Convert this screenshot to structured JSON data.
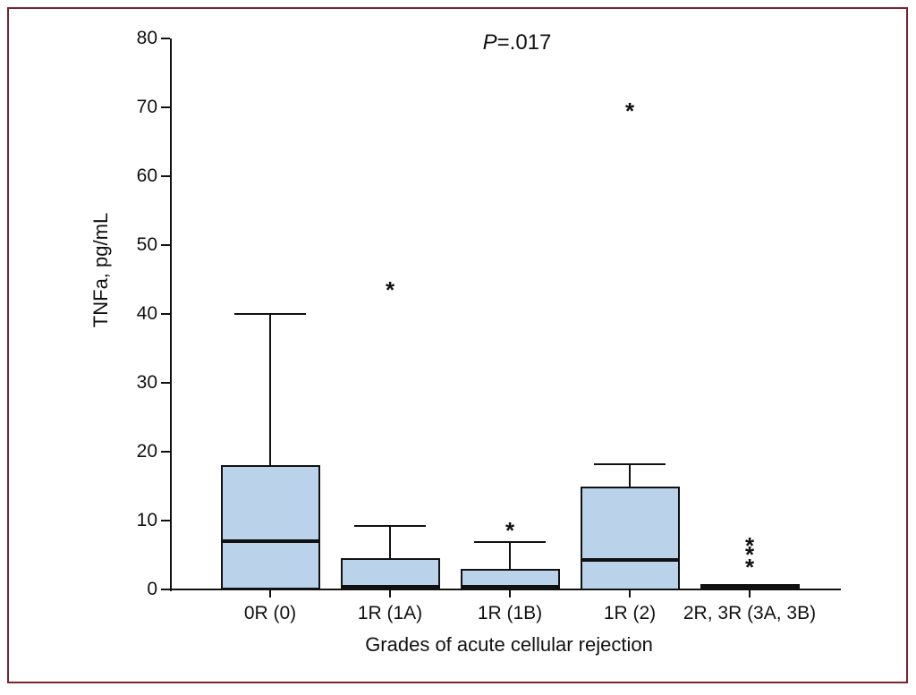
{
  "figure": {
    "frame_border_color": "#7d2332",
    "background": "#ffffff"
  },
  "chart_data": {
    "type": "boxplot",
    "title": "",
    "annotation": {
      "text": "P=.017",
      "italic": "P",
      "rest": "=.017"
    },
    "xlabel": "Grades of acute cellular rejection",
    "ylabel": "TNFa, pg/mL",
    "ylim": [
      0,
      80
    ],
    "yticks": [
      0,
      10,
      20,
      30,
      40,
      50,
      60,
      70,
      80
    ],
    "grid": false,
    "legend": false,
    "categories": [
      "0R (0)",
      "1R (1A)",
      "1R (1B)",
      "1R (2)",
      "2R, 3R (3A, 3B)"
    ],
    "series": [
      {
        "category": "0R (0)",
        "q1": 0,
        "median": 7,
        "q3": 18,
        "whisker_low": 0,
        "whisker_high": 40,
        "outliers": []
      },
      {
        "category": "1R (1A)",
        "q1": 0,
        "median": 0.4,
        "q3": 4.5,
        "whisker_low": 0,
        "whisker_high": 9.2,
        "outliers": [
          44
        ]
      },
      {
        "category": "1R (1B)",
        "q1": 0,
        "median": 0.4,
        "q3": 3,
        "whisker_low": 0,
        "whisker_high": 6.9,
        "outliers": [
          9.1
        ]
      },
      {
        "category": "1R (2)",
        "q1": 0,
        "median": 4.3,
        "q3": 15,
        "whisker_low": 0,
        "whisker_high": 18.2,
        "outliers": [
          70
        ]
      },
      {
        "category": "2R, 3R (3A, 3B)",
        "q1": 0.4,
        "median": 0.4,
        "q3": 0.4,
        "whisker_low": null,
        "whisker_high": null,
        "outliers": [
          6.9,
          5.6,
          3.8
        ]
      }
    ],
    "colors": {
      "box_fill": "#bad3ea",
      "line": "#111111"
    }
  }
}
